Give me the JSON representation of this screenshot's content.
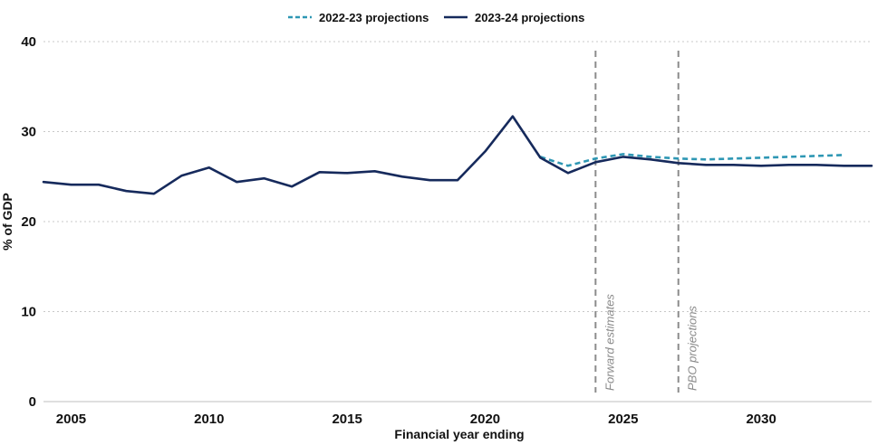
{
  "chart_data": {
    "type": "line",
    "xlabel": "Financial year ending",
    "ylabel": "% of GDP",
    "xlim": [
      2004,
      2034
    ],
    "ylim": [
      0,
      40
    ],
    "x_ticks": [
      2005,
      2010,
      2015,
      2020,
      2025,
      2030
    ],
    "y_ticks": [
      0,
      10,
      20,
      30,
      40
    ],
    "grid": "horizontal dotted",
    "legend_position": "top-center",
    "series": [
      {
        "name": "2022-23 projections",
        "style": "dashed",
        "color": "#2e97b4",
        "x": [
          2022,
          2023,
          2024,
          2025,
          2026,
          2027,
          2028,
          2029,
          2030,
          2031,
          2032,
          2033
        ],
        "y": [
          27.2,
          26.2,
          27.0,
          27.5,
          27.2,
          27.0,
          26.9,
          27.0,
          27.1,
          27.2,
          27.3,
          27.4
        ]
      },
      {
        "name": "2023-24 projections",
        "style": "solid",
        "color": "#162a5c",
        "x": [
          2004,
          2005,
          2006,
          2007,
          2008,
          2009,
          2010,
          2011,
          2012,
          2013,
          2014,
          2015,
          2016,
          2017,
          2018,
          2019,
          2020,
          2021,
          2022,
          2023,
          2024,
          2025,
          2026,
          2027,
          2028,
          2029,
          2030,
          2031,
          2032,
          2033,
          2034
        ],
        "y": [
          24.4,
          24.1,
          24.1,
          23.4,
          23.1,
          25.1,
          26.0,
          24.4,
          24.8,
          23.9,
          25.5,
          25.4,
          25.6,
          25.0,
          24.6,
          24.6,
          27.8,
          31.7,
          27.1,
          25.4,
          26.6,
          27.2,
          26.9,
          26.5,
          26.3,
          26.3,
          26.2,
          26.3,
          26.3,
          26.2,
          26.2
        ]
      }
    ],
    "vertical_markers": [
      {
        "x": 2024,
        "label": "Forward estimates"
      },
      {
        "x": 2027,
        "label": "PBO projections"
      }
    ]
  }
}
